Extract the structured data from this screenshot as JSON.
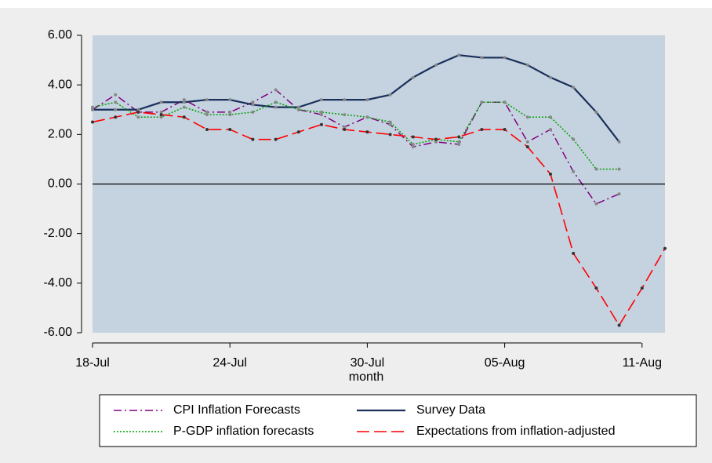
{
  "chart_data": {
    "type": "line",
    "categories": [
      "18-Jul",
      null,
      null,
      null,
      null,
      null,
      "24-Jul",
      null,
      null,
      null,
      null,
      null,
      "30-Jul",
      null,
      null,
      null,
      null,
      null,
      "05-Aug",
      null,
      null,
      null,
      null,
      null,
      "11-Aug",
      null
    ],
    "x_label": "month",
    "series": [
      {
        "name": "CPI Inflation Forecasts",
        "color": "#800080",
        "line_style": "dash-dot",
        "values": [
          3.0,
          3.6,
          2.9,
          2.9,
          3.4,
          2.9,
          2.9,
          3.3,
          3.8,
          3.0,
          2.8,
          2.3,
          2.7,
          2.4,
          1.5,
          1.7,
          1.6,
          3.3,
          3.3,
          1.7,
          2.2,
          0.5,
          -0.8,
          -0.4,
          null,
          null
        ]
      },
      {
        "name": "Survey Data",
        "color": "#1a2f5a",
        "line_style": "solid",
        "values": [
          3.0,
          3.0,
          3.0,
          3.3,
          3.3,
          3.4,
          3.4,
          3.2,
          3.1,
          3.1,
          3.4,
          3.4,
          3.4,
          3.6,
          4.3,
          4.8,
          5.2,
          5.1,
          5.1,
          4.8,
          4.3,
          3.9,
          2.9,
          1.7,
          null,
          null
        ]
      },
      {
        "name": "P-GDP inflation forecasts",
        "color": "#00a000",
        "line_style": "dotted",
        "values": [
          3.1,
          3.3,
          2.7,
          2.7,
          3.1,
          2.8,
          2.8,
          2.9,
          3.3,
          3.0,
          2.9,
          2.8,
          2.7,
          2.5,
          1.6,
          1.8,
          1.7,
          3.3,
          3.3,
          2.7,
          2.7,
          1.8,
          0.6,
          0.6,
          null,
          null
        ]
      },
      {
        "name": "Expectations from inflation-adjusted",
        "color": "#ff0000",
        "line_style": "long-dash",
        "values": [
          2.5,
          2.7,
          2.9,
          2.8,
          2.7,
          2.2,
          2.2,
          1.8,
          1.8,
          2.1,
          2.4,
          2.2,
          2.1,
          2.0,
          1.9,
          1.8,
          1.9,
          2.2,
          2.2,
          1.5,
          0.4,
          -2.8,
          -4.2,
          -5.7,
          -4.2,
          -2.6
        ]
      }
    ],
    "ylim": [
      -6,
      6
    ],
    "yticks": [
      {
        "value": 6,
        "label": "6.00"
      },
      {
        "value": 4,
        "label": "4.00"
      },
      {
        "value": 2,
        "label": "2.00"
      },
      {
        "value": 0,
        "label": "0.00"
      },
      {
        "value": -2,
        "label": "-2.00"
      },
      {
        "value": -4,
        "label": "-4.00"
      },
      {
        "value": -6,
        "label": "-6.00"
      }
    ],
    "zero_line": true,
    "plot_background": "#c5d3e0"
  }
}
